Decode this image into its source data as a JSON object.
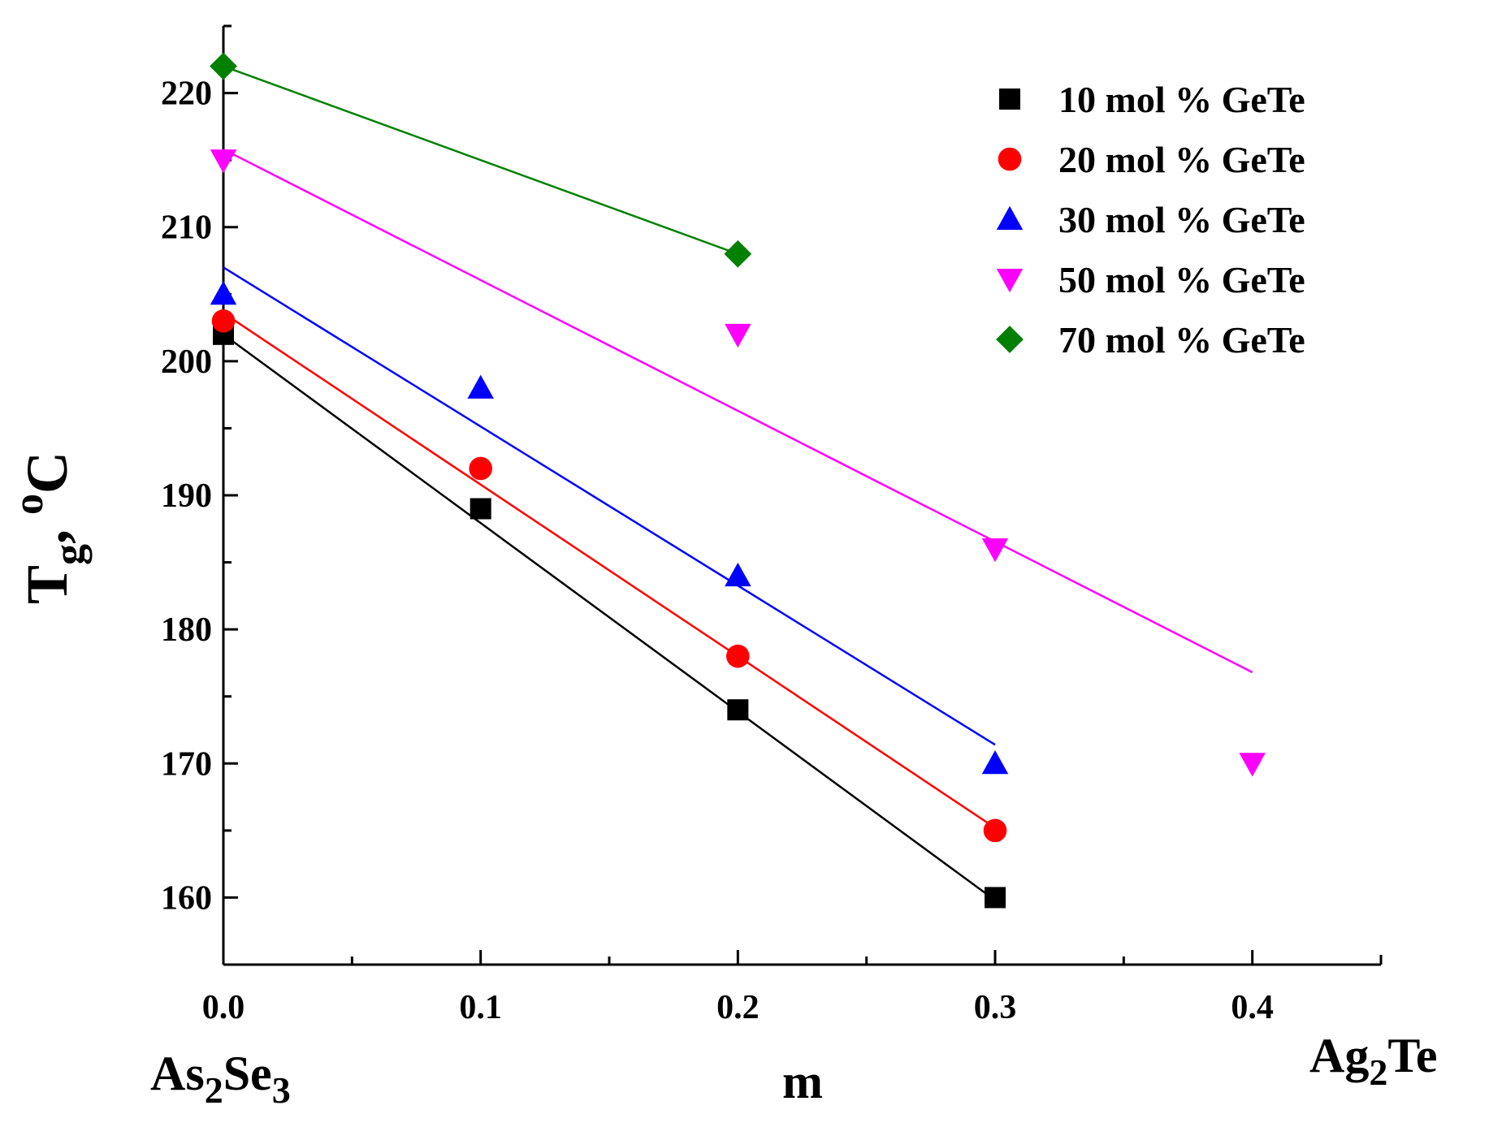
{
  "chart_data": {
    "type": "scatter",
    "xlabel": "m",
    "ylabel_main": "T",
    "ylabel_sub": "g",
    "ylabel_rest": ", ",
    "ylabel_sup": "o",
    "ylabel_unit": "C",
    "left_compound": {
      "a": "As",
      "a_sub": "2",
      "b": "Se",
      "b_sub": "3"
    },
    "right_compound": {
      "a": "Ag",
      "a_sub": "2",
      "b": "Te"
    },
    "xlim": [
      0,
      0.45
    ],
    "ylim": [
      155,
      225
    ],
    "xticks": [
      "0.0",
      "0.1",
      "0.2",
      "0.3",
      "0.4"
    ],
    "yticks": [
      "160",
      "170",
      "180",
      "190",
      "200",
      "210",
      "220"
    ],
    "legend_position": "top-right",
    "series": [
      {
        "name": "10 mol % GeTe",
        "color": "#000000",
        "marker": "square",
        "x": [
          0.0,
          0.1,
          0.2,
          0.3
        ],
        "y": [
          202,
          189,
          174,
          160
        ],
        "fit": {
          "x": [
            0.0,
            0.3
          ],
          "y": [
            202.0,
            159.8
          ]
        }
      },
      {
        "name": "20 mol % GeTe",
        "color": "#ff0000",
        "marker": "circle",
        "x": [
          0.0,
          0.1,
          0.2,
          0.3
        ],
        "y": [
          203,
          192,
          178,
          165
        ],
        "fit": {
          "x": [
            0.0,
            0.3
          ],
          "y": [
            203.6,
            165.2
          ]
        }
      },
      {
        "name": "30 mol % GeTe",
        "color": "#0000ff",
        "marker": "triangle-up",
        "x": [
          0.0,
          0.1,
          0.2,
          0.3
        ],
        "y": [
          205,
          198,
          184,
          170
        ],
        "fit": {
          "x": [
            0.0,
            0.3
          ],
          "y": [
            207.0,
            171.4
          ]
        }
      },
      {
        "name": "50 mol % GeTe",
        "color": "#ff00ff",
        "marker": "triangle-down",
        "x": [
          0.0,
          0.2,
          0.3,
          0.4
        ],
        "y": [
          215,
          202,
          186,
          170
        ],
        "fit": {
          "x": [
            0.0,
            0.4
          ],
          "y": [
            215.8,
            176.8
          ]
        }
      },
      {
        "name": "70 mol % GeTe",
        "color": "#008000",
        "marker": "diamond",
        "x": [
          0.0,
          0.2
        ],
        "y": [
          222,
          208
        ],
        "fit": {
          "x": [
            0.0,
            0.2
          ],
          "y": [
            222.0,
            208.0
          ]
        }
      }
    ]
  }
}
